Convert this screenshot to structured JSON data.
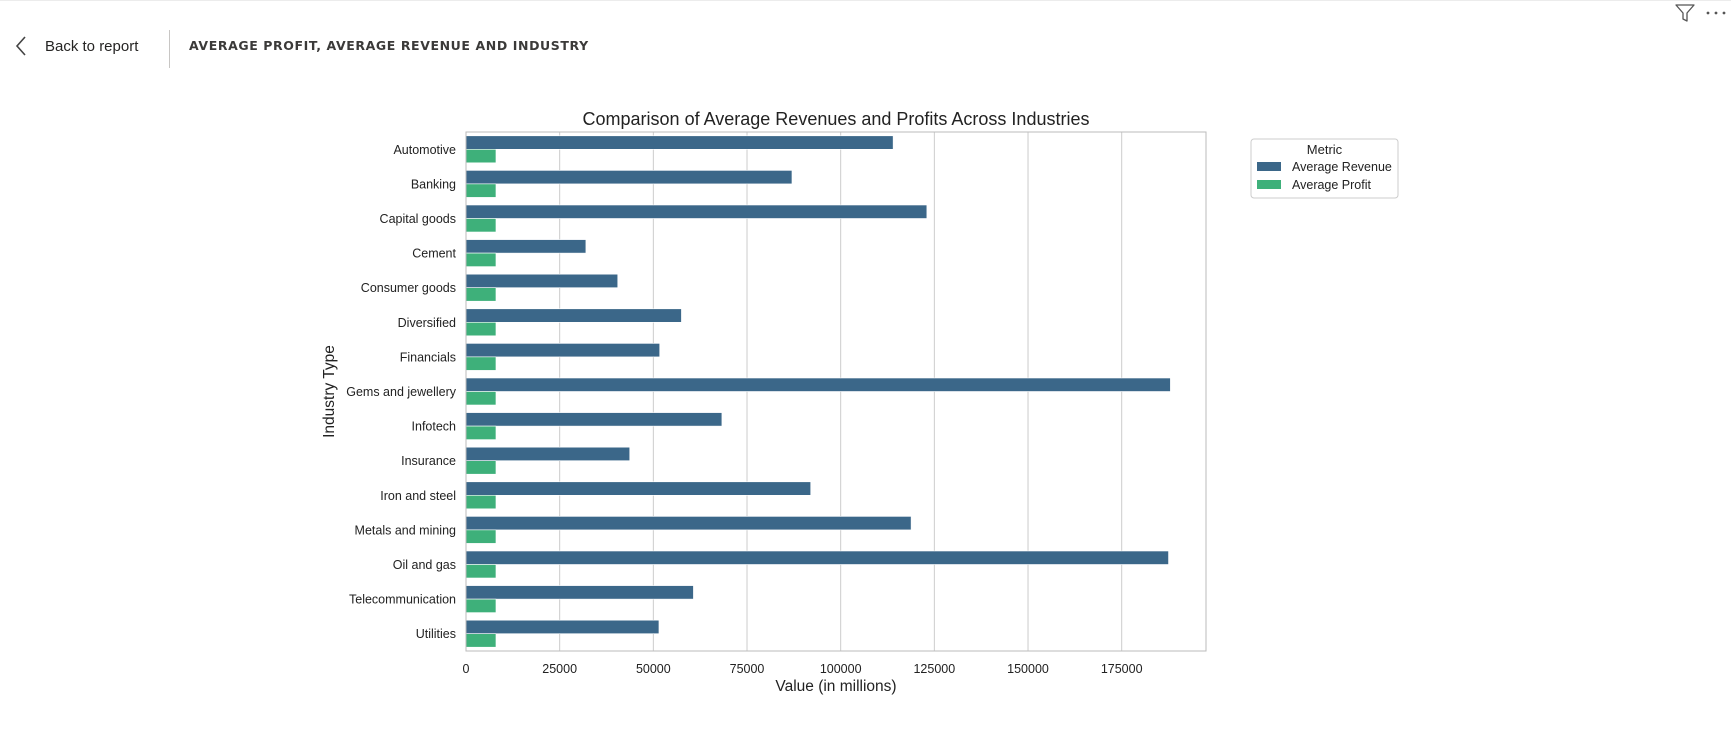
{
  "header": {
    "back_label": "Back to report",
    "page_title": "AVERAGE PROFIT, AVERAGE REVENUE AND INDUSTRY"
  },
  "toolbar": {
    "icons": [
      "filter-icon",
      "more-options-icon"
    ]
  },
  "colors": {
    "revenue": "#3b6789",
    "profit": "#3eb07a",
    "grid": "#cccccc",
    "frame": "#bbbbbb"
  },
  "chart_data": {
    "type": "bar",
    "orientation": "horizontal",
    "title": "Comparison of Average Revenues and Profits Across Industries",
    "xlabel": "Value (in millions)",
    "ylabel": "Industry Type",
    "xlim": [
      0,
      197500
    ],
    "xticks": [
      0,
      25000,
      50000,
      75000,
      100000,
      125000,
      150000,
      175000
    ],
    "grid": "vertical",
    "legend_title": "Metric",
    "legend_position": "outside-right-top",
    "categories": [
      "Automotive",
      "Banking",
      "Capital goods",
      "Cement",
      "Consumer goods",
      "Diversified",
      "Financials",
      "Gems and jewellery",
      "Infotech",
      "Insurance",
      "Iron and steel",
      "Metals and mining",
      "Oil and gas",
      "Telecommunication",
      "Utilities"
    ],
    "series": [
      {
        "name": "Average Revenue",
        "values": [
          114000,
          87000,
          123000,
          32000,
          40500,
          57500,
          51700,
          188000,
          68300,
          43700,
          92000,
          118800,
          187500,
          60700,
          51500
        ]
      },
      {
        "name": "Average Profit",
        "values": [
          8000,
          8000,
          8000,
          8000,
          8000,
          8000,
          8000,
          8000,
          8000,
          8000,
          8000,
          8000,
          8000,
          8000,
          8000
        ]
      }
    ]
  }
}
